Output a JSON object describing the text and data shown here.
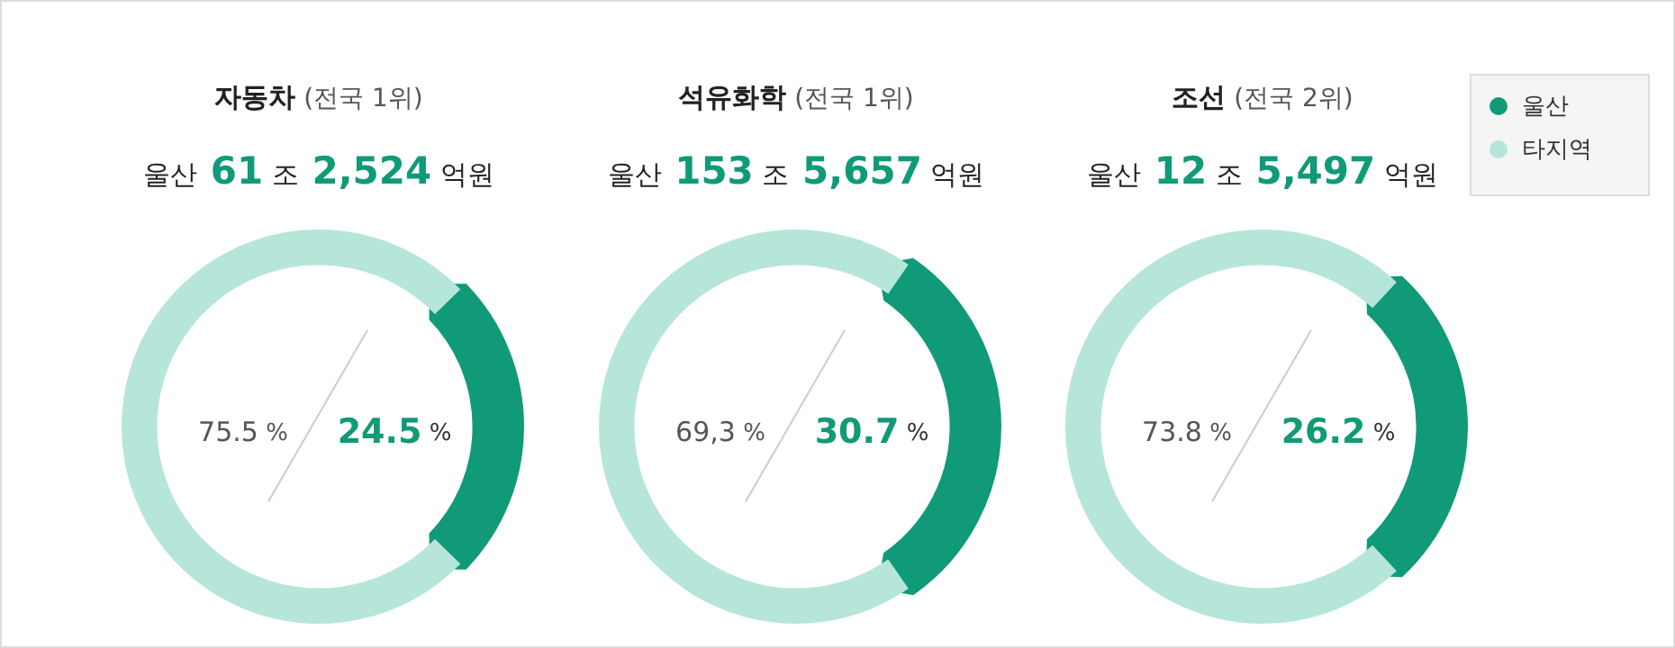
{
  "chart_data": [
    {
      "type": "donut",
      "title": "자동차 (전국 1위)",
      "subtitle": "울산 61 조 2,524 억원",
      "categories": [
        null,
        null
      ],
      "values": [
        24.5,
        75.5
      ],
      "colors": [
        "#109a78",
        "#b6e5da"
      ],
      "value_labels": [
        "24.5 %",
        "75.5 %"
      ]
    },
    {
      "type": "donut",
      "title": "석유화학 (전국 1위)",
      "subtitle": "울산 153 조 5,657 억원",
      "categories": [
        null,
        null
      ],
      "values": [
        30.7,
        69.3
      ],
      "colors": [
        "#109a78",
        "#b6e5da"
      ],
      "value_labels": [
        "30.7 %",
        "69,3 %"
      ]
    },
    {
      "type": "donut",
      "title": "조선 (전국 2위)",
      "subtitle": "울산 12 조 5,497 억원",
      "categories": [
        "울산",
        "타지역"
      ],
      "values": [
        26.2,
        73.8
      ],
      "colors": [
        "#109a78",
        "#b6e5da"
      ],
      "value_labels": [
        "26.2 %",
        "73.8 %"
      ],
      "legend": "top right"
    }
  ]
}
